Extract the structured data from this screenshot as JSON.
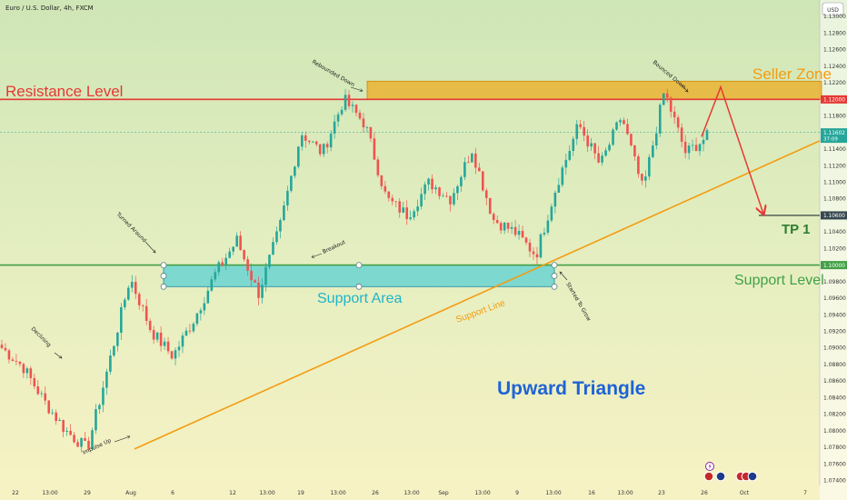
{
  "header": {
    "symbol": "Euro / U.S. Dollar, 4h, FXCM",
    "currency": "USD"
  },
  "colors": {
    "bull": "#26a69a",
    "bear": "#ef5350",
    "resistance": "#e53935",
    "support": "#43a047",
    "triangle_line": "#f39c12",
    "support_area": "#26c6da",
    "seller_zone": "#f0a30a",
    "title": "#1e63d6"
  },
  "annotations": {
    "resistance_level": "Resistance Level",
    "support_level": "Support Level",
    "seller_zone": "Seller Zone",
    "support_area": "Support Area",
    "support_line": "Support Line",
    "tp1": "TP 1",
    "title": "Upward Triangle",
    "declining": "Declining",
    "impulse_up": "Impulse Up",
    "turned_around": "Turned Around",
    "breakout": "Breakout",
    "rebounded_down": "Rebounded Down",
    "started_to_grow": "Started To Grow",
    "bounced_down": "Bounced Down"
  },
  "chart_data": {
    "type": "candlestick",
    "title": "Euro / U.S. Dollar, 4h, FXCM",
    "ylim": [
      1.0734,
      1.132
    ],
    "y_ticks": [
      "1.13000",
      "1.12800",
      "1.12600",
      "1.12400",
      "1.12200",
      "1.11800",
      "1.11400",
      "1.11200",
      "1.11000",
      "1.10800",
      "1.10400",
      "1.10200",
      "1.09800",
      "1.09600",
      "1.09400",
      "1.09200",
      "1.09000",
      "1.08800",
      "1.08600",
      "1.08400",
      "1.08200",
      "1.08000",
      "1.07800",
      "1.07600",
      "1.07400"
    ],
    "x_ticks": [
      "22",
      "13:00",
      "29",
      "Aug",
      "6",
      "12",
      "13:00",
      "19",
      "13:00",
      "26",
      "13:00",
      "Sep",
      "13:00",
      "9",
      "13:00",
      "16",
      "13:00",
      "23",
      "26",
      "Oct",
      "7"
    ],
    "price_badges": [
      {
        "value": "1.12000",
        "color": "#e53935"
      },
      {
        "value": "1.11602",
        "color": "#26a69a",
        "subtext": "37:09"
      },
      {
        "value": "1.10600",
        "color": "#37474f"
      },
      {
        "value": "1.10000",
        "color": "#43a047"
      }
    ],
    "levels": {
      "resistance": 1.12,
      "support": 1.1,
      "tp1": 1.106
    },
    "zones": [
      {
        "name": "Seller Zone",
        "from": 1.12,
        "to": 1.1222
      },
      {
        "name": "Support Area",
        "from": 1.0974,
        "to": 1.1
      }
    ],
    "support_line": [
      [
        1.0778
      ],
      [
        1.115
      ]
    ],
    "anchors": [
      1.09,
      1.0877,
      1.0835,
      1.08,
      1.0778,
      1.088,
      1.0985,
      1.092,
      1.089,
      1.0935,
      1.099,
      1.103,
      1.0965,
      1.1045,
      1.116,
      1.1135,
      1.12,
      1.117,
      1.108,
      1.106,
      1.11,
      1.108,
      1.114,
      1.1055,
      1.104,
      1.1012,
      1.11,
      1.117,
      1.112,
      1.118,
      1.109,
      1.121,
      1.1135,
      1.1155
    ],
    "projection": [
      1.1215,
      1.1062
    ]
  }
}
